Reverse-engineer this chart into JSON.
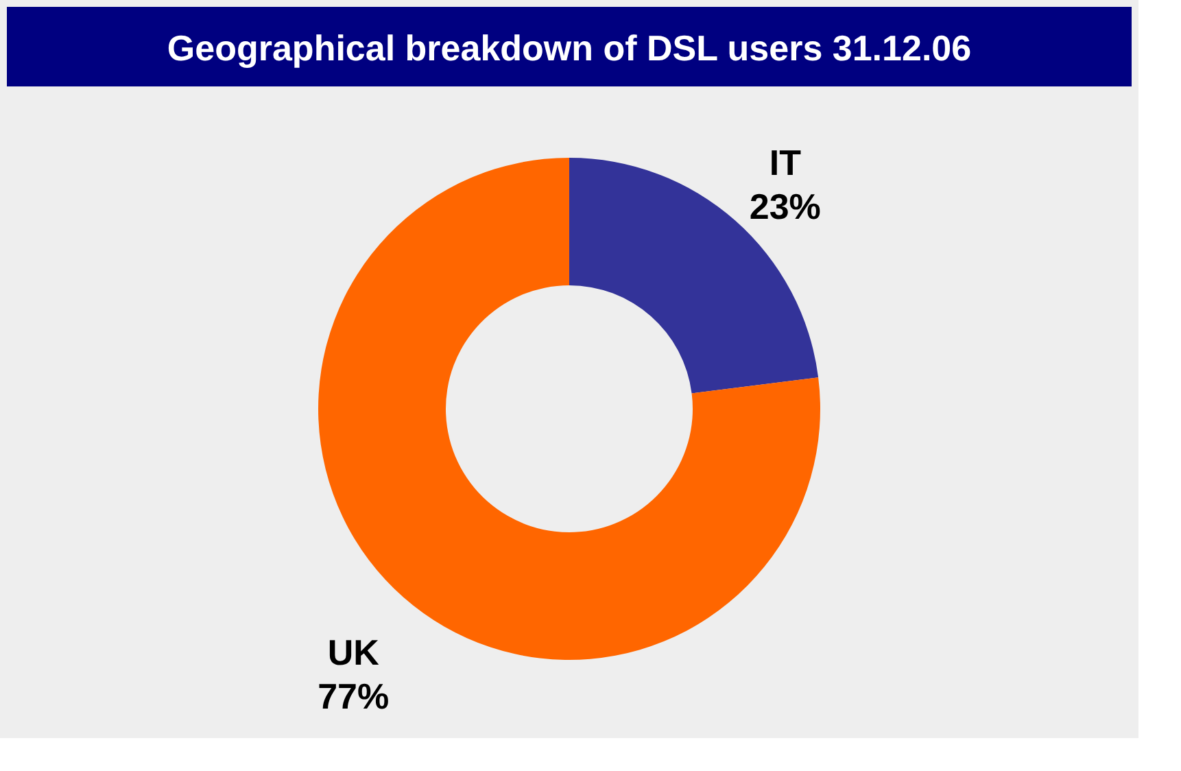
{
  "chart_data": {
    "type": "donut",
    "title": "Geographical breakdown of DSL users 31.12.06",
    "categories": [
      "IT",
      "UK"
    ],
    "values": [
      23,
      77
    ],
    "colors": [
      "#333399",
      "#ff6600"
    ],
    "value_labels": [
      "23%",
      "77%"
    ],
    "legend": false
  }
}
